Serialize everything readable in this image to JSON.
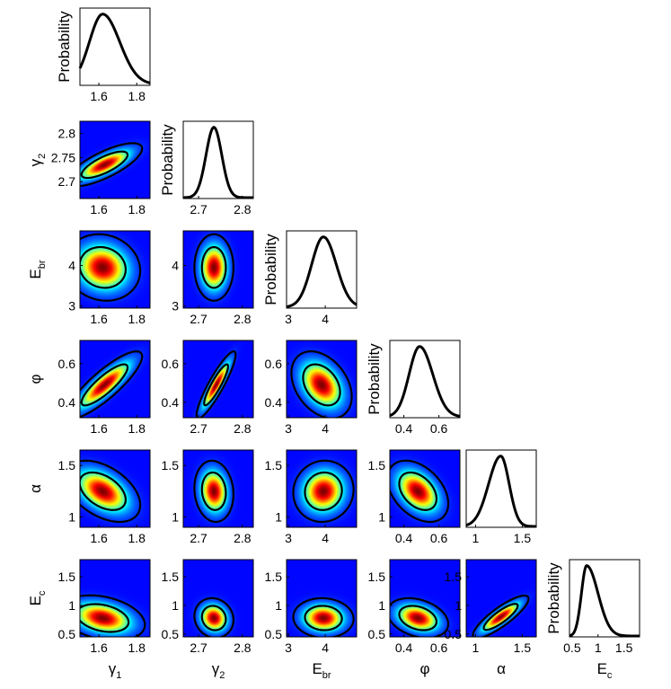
{
  "chart_data": {
    "type": "corner",
    "parameters": [
      {
        "key": "g1",
        "label": "γ",
        "sub": "1",
        "range": [
          1.5,
          1.87
        ],
        "ticks": [
          "1.6",
          "1.8"
        ],
        "tick_values": [
          1.6,
          1.8
        ]
      },
      {
        "key": "g2",
        "label": "γ",
        "sub": "2",
        "range": [
          2.665,
          2.825
        ],
        "ticks": [
          "2.7",
          "2.75",
          "2.8"
        ],
        "tick_values": [
          2.7,
          2.75,
          2.8
        ],
        "xticks": [
          "2.7",
          "2.8"
        ],
        "xtick_values": [
          2.7,
          2.8
        ]
      },
      {
        "key": "Ebr",
        "label": "E",
        "sub": "br",
        "range": [
          2.95,
          4.85
        ],
        "ticks": [
          "3",
          "4"
        ],
        "tick_values": [
          3,
          4
        ]
      },
      {
        "key": "phi",
        "label": "φ",
        "sub": "",
        "range": [
          0.32,
          0.72
        ],
        "ticks": [
          "0.4",
          "0.6"
        ],
        "tick_values": [
          0.4,
          0.6
        ]
      },
      {
        "key": "alpha",
        "label": "α",
        "sub": "",
        "range": [
          0.9,
          1.65
        ],
        "ticks": [
          "1",
          "1.5"
        ],
        "tick_values": [
          1,
          1.5
        ]
      },
      {
        "key": "Ec",
        "label": "E",
        "sub": "c",
        "range": [
          0.45,
          1.8
        ],
        "ticks": [
          "0.5",
          "1",
          "1.5"
        ],
        "tick_values": [
          0.5,
          1,
          1.5
        ],
        "xticks": [
          "0.5",
          "1",
          "1.5"
        ],
        "xtick_values": [
          0.5,
          1,
          1.5
        ]
      }
    ],
    "diagonal_ylabel": "Probability",
    "marginals": [
      {
        "param": "g1",
        "peak": 1.62,
        "sd_left": 0.07,
        "sd_right": 0.09
      },
      {
        "param": "g2",
        "peak": 2.735,
        "sd_left": 0.018,
        "sd_right": 0.018
      },
      {
        "param": "Ebr",
        "peak": 3.95,
        "sd_left": 0.32,
        "sd_right": 0.35
      },
      {
        "param": "phi",
        "peak": 0.49,
        "sd_left": 0.06,
        "sd_right": 0.075
      },
      {
        "param": "alpha",
        "peak": 1.27,
        "sd_left": 0.13,
        "sd_right": 0.09
      },
      {
        "param": "Ec",
        "peak": 0.78,
        "sd_left": 0.1,
        "sd_right": 0.22
      }
    ],
    "joint": [
      {
        "x": "g1",
        "y": "g2",
        "cx": 1.63,
        "cy": 2.735,
        "sx": 0.08,
        "sy": 0.018,
        "rho": 0.75
      },
      {
        "x": "g1",
        "y": "Ebr",
        "cx": 1.62,
        "cy": 3.95,
        "sx": 0.08,
        "sy": 0.33,
        "rho": -0.1
      },
      {
        "x": "g2",
        "y": "Ebr",
        "cx": 2.735,
        "cy": 3.95,
        "sx": 0.018,
        "sy": 0.33,
        "rho": 0.0
      },
      {
        "x": "g1",
        "y": "phi",
        "cx": 1.63,
        "cy": 0.49,
        "sx": 0.08,
        "sy": 0.07,
        "rho": 0.85
      },
      {
        "x": "g2",
        "y": "phi",
        "cx": 2.74,
        "cy": 0.49,
        "sx": 0.018,
        "sy": 0.07,
        "rho": 0.9
      },
      {
        "x": "Ebr",
        "y": "phi",
        "cx": 3.9,
        "cy": 0.49,
        "sx": 0.33,
        "sy": 0.07,
        "rho": -0.35
      },
      {
        "x": "g1",
        "y": "alpha",
        "cx": 1.62,
        "cy": 1.25,
        "sx": 0.08,
        "sy": 0.12,
        "rho": -0.45
      },
      {
        "x": "g2",
        "y": "alpha",
        "cx": 2.735,
        "cy": 1.25,
        "sx": 0.018,
        "sy": 0.12,
        "rho": -0.1
      },
      {
        "x": "Ebr",
        "y": "alpha",
        "cx": 3.95,
        "cy": 1.25,
        "sx": 0.33,
        "sy": 0.12,
        "rho": 0.05
      },
      {
        "x": "phi",
        "y": "alpha",
        "cx": 0.48,
        "cy": 1.25,
        "sx": 0.07,
        "sy": 0.12,
        "rho": -0.4
      },
      {
        "x": "g1",
        "y": "Ec",
        "cx": 1.62,
        "cy": 0.78,
        "sx": 0.09,
        "sy": 0.16,
        "rho": -0.3
      },
      {
        "x": "g2",
        "y": "Ec",
        "cx": 2.735,
        "cy": 0.78,
        "sx": 0.018,
        "sy": 0.14,
        "rho": -0.1
      },
      {
        "x": "Ebr",
        "y": "Ec",
        "cx": 3.95,
        "cy": 0.78,
        "sx": 0.33,
        "sy": 0.14,
        "rho": -0.05
      },
      {
        "x": "phi",
        "y": "Ec",
        "cx": 0.48,
        "cy": 0.78,
        "sx": 0.07,
        "sy": 0.14,
        "rho": -0.3
      },
      {
        "x": "alpha",
        "y": "Ec",
        "cx": 1.27,
        "cy": 0.8,
        "sx": 0.12,
        "sy": 0.15,
        "rho": 0.85
      }
    ],
    "contour_levels_sigma": [
      1,
      2
    ],
    "colormap": "jet",
    "grid": false
  }
}
